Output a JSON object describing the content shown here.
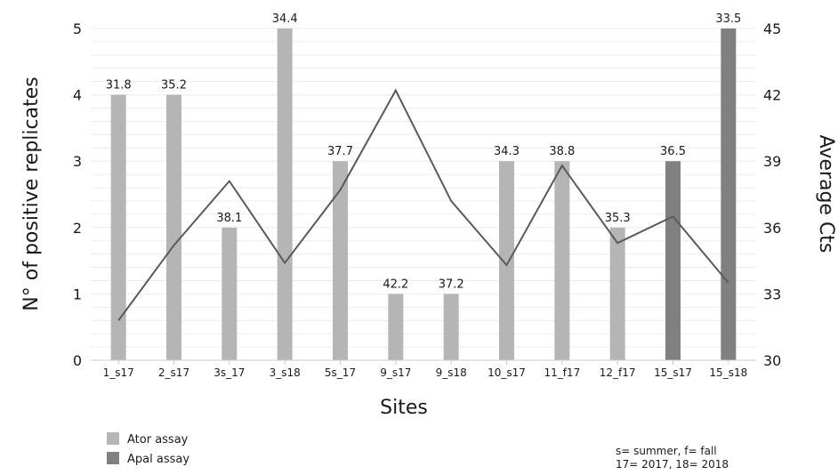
{
  "chart_data": {
    "type": "bar",
    "categories": [
      "1_s17",
      "2_s17",
      "3s_17",
      "3_s18",
      "5s_17",
      "9_s17",
      "9_s18",
      "10_s17",
      "11_f17",
      "12_f17",
      "15_s17",
      "15_s18"
    ],
    "series": [
      {
        "name": "Ator assay",
        "axis": "left",
        "color": "#b5b5b5",
        "values": [
          4,
          4,
          2,
          5,
          3,
          1,
          1,
          3,
          3,
          2,
          null,
          null
        ]
      },
      {
        "name": "Apal assay",
        "axis": "left",
        "color": "#808080",
        "values": [
          null,
          null,
          null,
          null,
          null,
          null,
          null,
          null,
          null,
          null,
          3,
          5
        ]
      },
      {
        "type": "line",
        "axis": "right",
        "color": "#5a5a5a",
        "values": [
          31.8,
          35.2,
          38.1,
          34.4,
          37.7,
          42.2,
          37.2,
          34.3,
          38.8,
          35.3,
          36.5,
          33.5
        ]
      }
    ],
    "bar_labels": [
      "31.8",
      "35.2",
      "38.1",
      "34.4",
      "37.7",
      "42.2",
      "37.2",
      "34.3",
      "38.8",
      "35.3",
      "36.5",
      "33.5"
    ],
    "xlabel": "Sites",
    "ylabel": "N° of positive replicates",
    "y2label": "Average Cts",
    "ylim": [
      0,
      5
    ],
    "y2lim": [
      30,
      45
    ],
    "yticks": [
      "0",
      "1",
      "2",
      "3",
      "4",
      "5"
    ],
    "y2ticks": [
      "30",
      "33",
      "36",
      "39",
      "42",
      "45"
    ],
    "grid": true,
    "legend_position": "bottom-left",
    "note_lines": [
      "s= summer, f= fall",
      "17= 2017, 18= 2018"
    ]
  }
}
